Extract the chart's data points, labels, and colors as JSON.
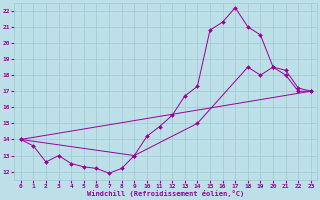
{
  "bg_color": "#bde0e8",
  "line_color": "#990099",
  "grid_color": "#a0c8d0",
  "xlim": [
    -0.5,
    23.5
  ],
  "ylim": [
    11.5,
    22.5
  ],
  "xticks": [
    0,
    1,
    2,
    3,
    4,
    5,
    6,
    7,
    8,
    9,
    10,
    11,
    12,
    13,
    14,
    15,
    16,
    17,
    18,
    19,
    20,
    21,
    22,
    23
  ],
  "yticks": [
    12,
    13,
    14,
    15,
    16,
    17,
    18,
    19,
    20,
    21,
    22
  ],
  "xlabel": "Windchill (Refroidissement éolien,°C)",
  "lines": [
    {
      "x": [
        0,
        1,
        2,
        3,
        4,
        5,
        6,
        7,
        8,
        9,
        10,
        11,
        12,
        13,
        14,
        15,
        16,
        17,
        18,
        19,
        20,
        21,
        22,
        23
      ],
      "y": [
        14.0,
        13.6,
        12.6,
        13.0,
        12.5,
        12.3,
        12.2,
        11.9,
        12.2,
        13.0,
        14.2,
        14.8,
        15.5,
        16.7,
        17.3,
        20.8,
        21.3,
        22.2,
        21.0,
        20.5,
        18.5,
        18.0,
        17.0,
        17.0
      ],
      "marker": true
    },
    {
      "x": [
        0,
        9,
        14,
        18,
        19,
        20,
        21,
        22,
        23
      ],
      "y": [
        14.0,
        13.0,
        15.0,
        18.5,
        18.0,
        18.5,
        18.3,
        17.2,
        17.0
      ],
      "marker": true
    },
    {
      "x": [
        0,
        23
      ],
      "y": [
        14.0,
        17.0
      ],
      "marker": false
    }
  ]
}
